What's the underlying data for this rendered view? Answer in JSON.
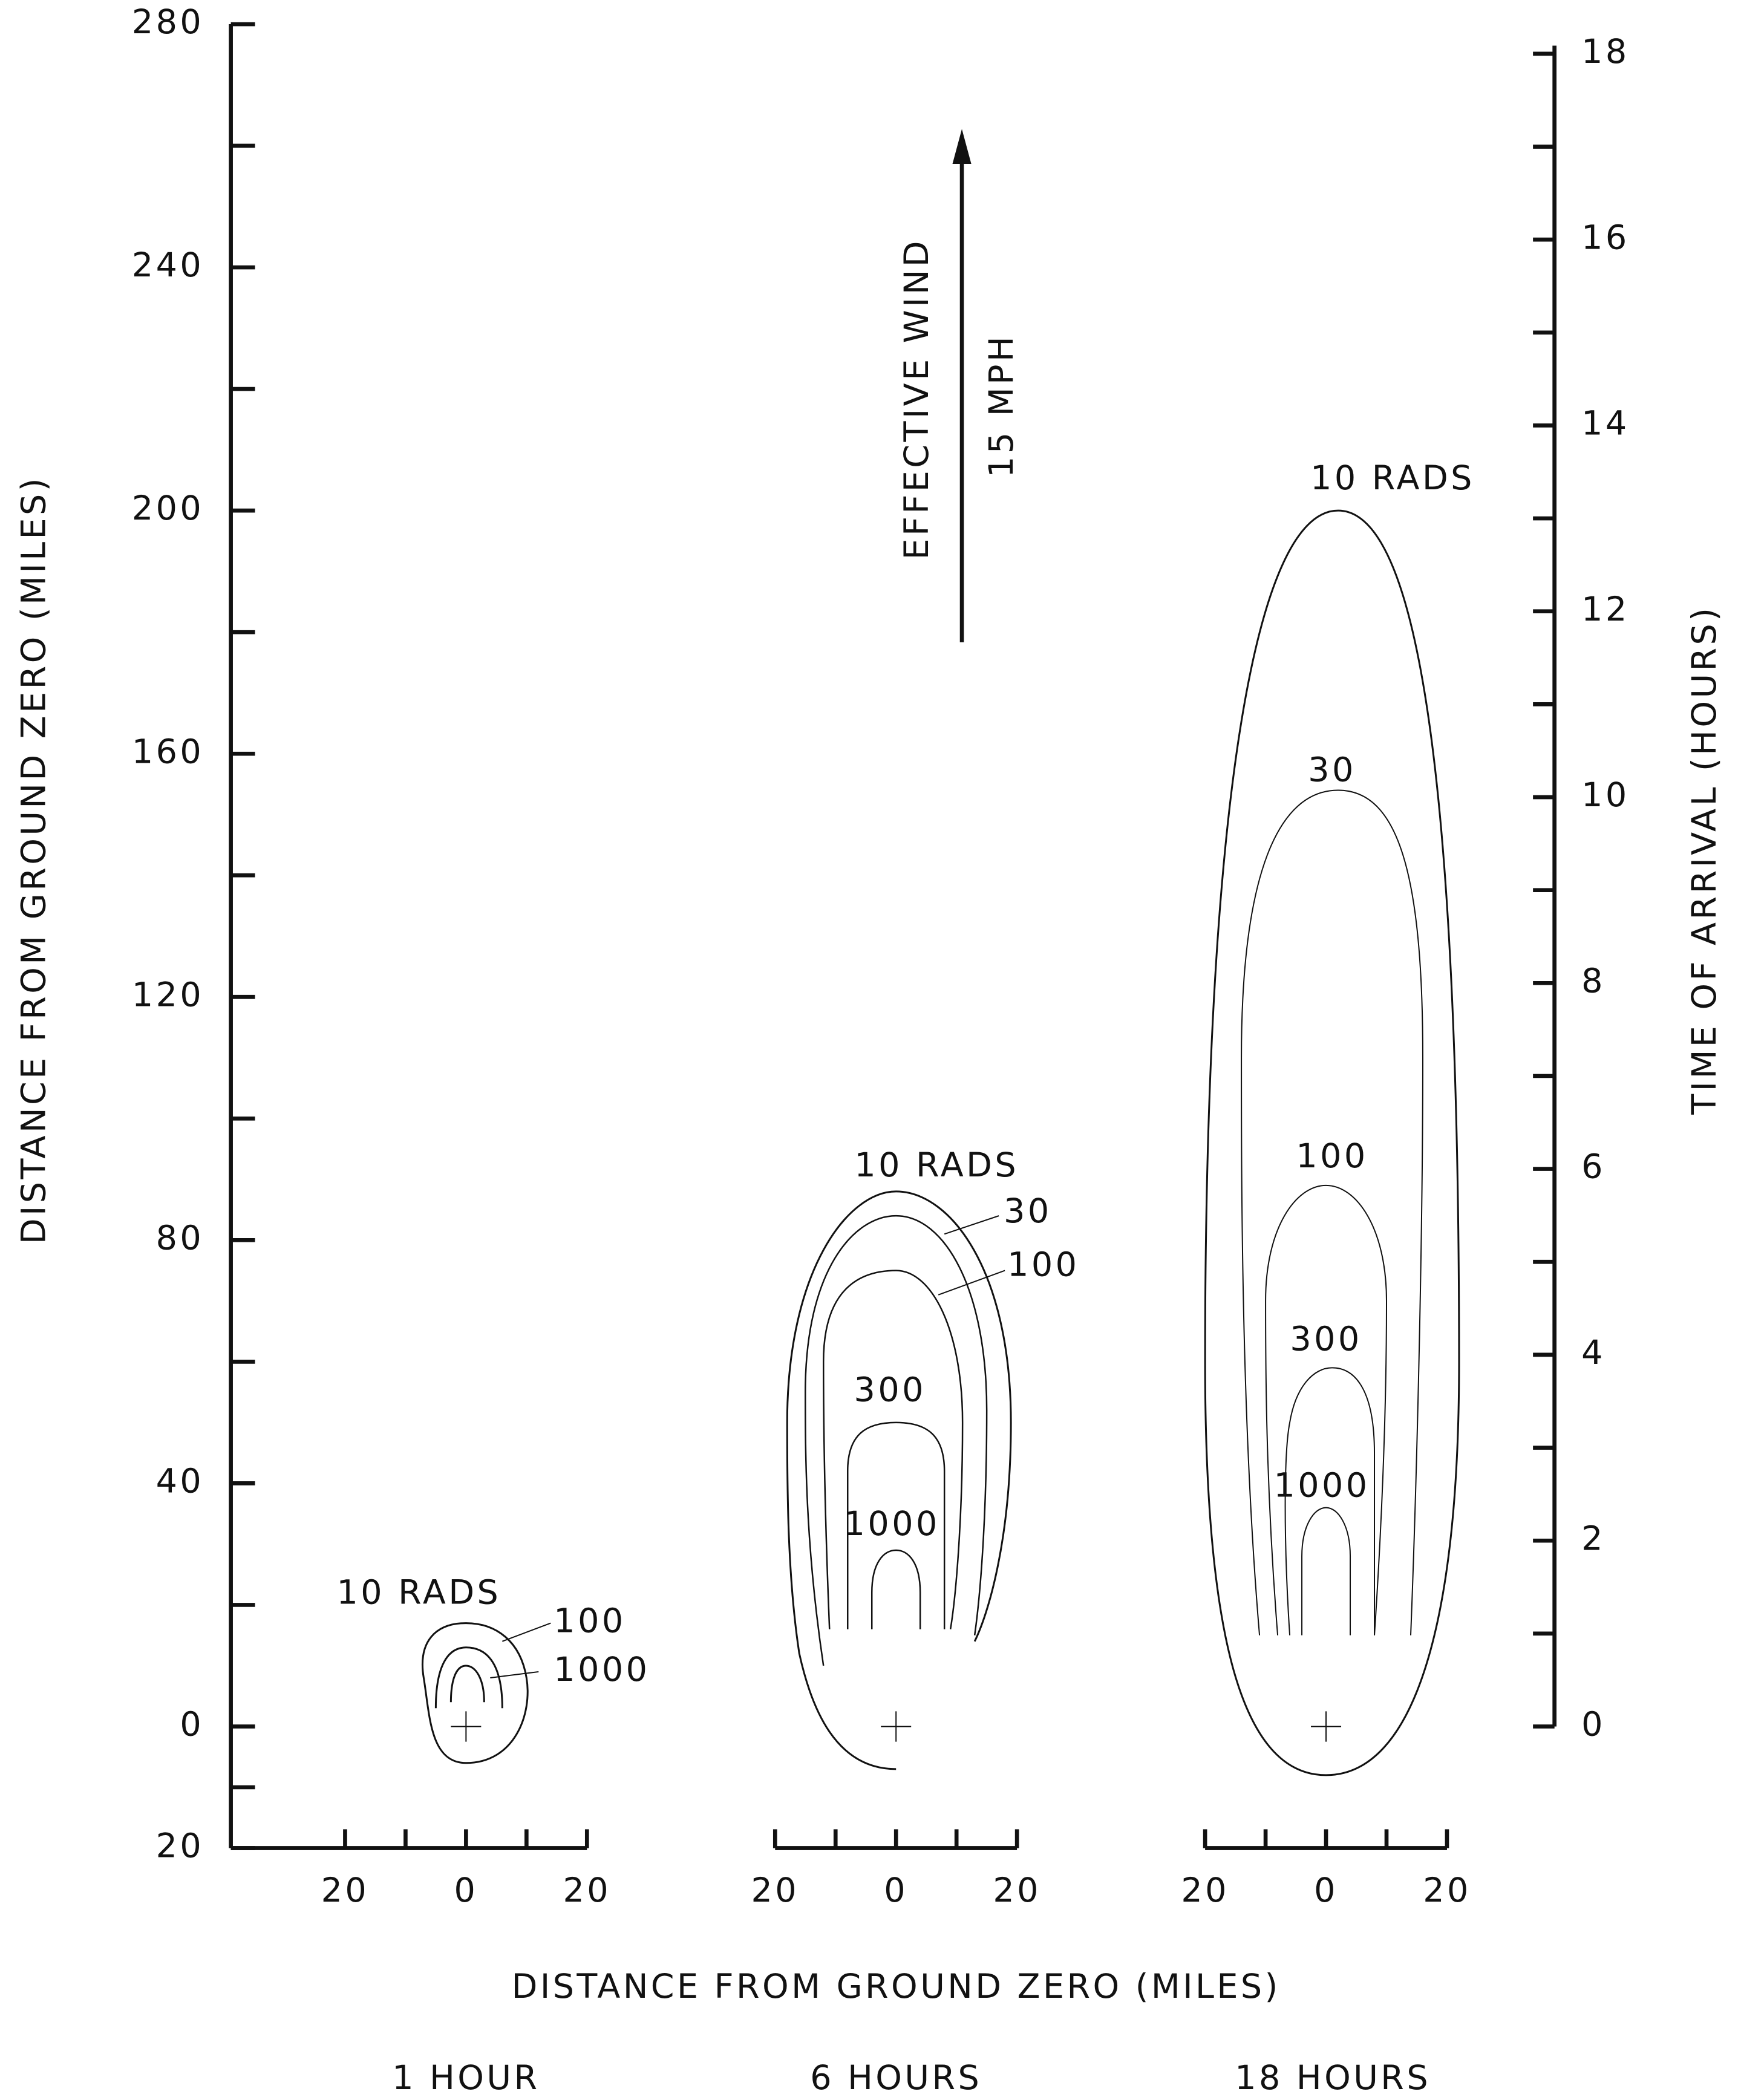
{
  "chart_data": {
    "type": "contour",
    "y_label": "DISTANCE FROM GROUND ZERO (MILES)",
    "y2_label": "TIME OF ARRIVAL (HOURS)",
    "x_label": "DISTANCE FROM GROUND ZERO (MILES)",
    "annotation": "EFFECTIVE WIND",
    "annotation_speed": "15 MPH",
    "ylim": [
      -20,
      280
    ],
    "yticks": [
      {
        "value": -20,
        "label": "20"
      },
      0,
      40,
      80,
      120,
      160,
      200,
      240,
      280
    ],
    "y2lim": [
      0,
      18
    ],
    "y2ticks": [
      0,
      2,
      4,
      6,
      8,
      10,
      12,
      14,
      16,
      18
    ],
    "panels": [
      {
        "title": "1 HOUR",
        "xlim": [
          -20,
          20
        ],
        "xticks": [
          {
            "value": -20,
            "label": "20"
          },
          0,
          20
        ],
        "contour_labels": [
          "10 RADS",
          "100",
          "1000"
        ]
      },
      {
        "title": "6 HOURS",
        "xlim": [
          -20,
          20
        ],
        "xticks": [
          {
            "value": -20,
            "label": "20"
          },
          0,
          20
        ],
        "contour_labels": [
          "10 RADS",
          "30",
          "100",
          "300",
          "1000"
        ]
      },
      {
        "title": "18 HOURS",
        "xlim": [
          -20,
          20
        ],
        "xticks": [
          {
            "value": -20,
            "label": "20"
          },
          0,
          20
        ],
        "contour_labels": [
          "10 RADS",
          "30",
          "100",
          "300",
          "1000"
        ]
      }
    ]
  }
}
